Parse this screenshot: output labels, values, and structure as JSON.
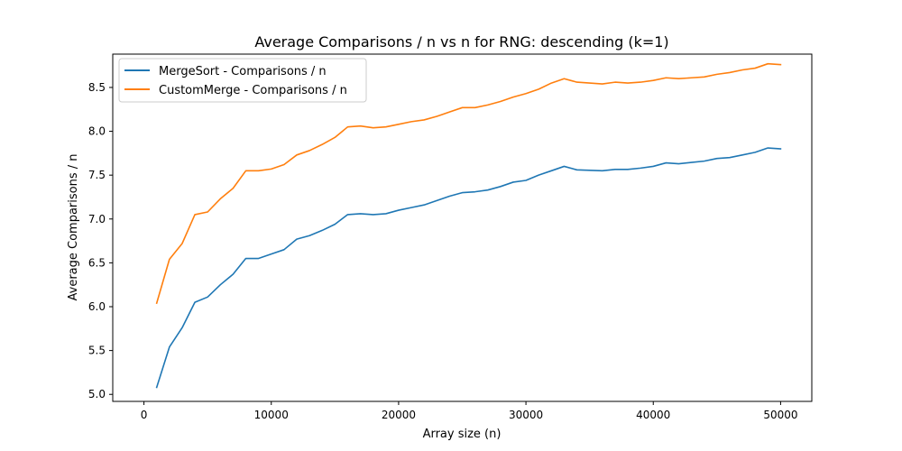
{
  "chart_data": {
    "type": "line",
    "title": "Average Comparisons / n vs n for RNG: descending (k=1)",
    "xlabel": "Array size (n)",
    "ylabel": "Average Comparisons / n",
    "xlim": [
      -2450,
      52450
    ],
    "ylim": [
      4.92,
      8.88
    ],
    "xticks": [
      0,
      10000,
      20000,
      30000,
      40000,
      50000
    ],
    "yticks": [
      5.0,
      5.5,
      6.0,
      6.5,
      7.0,
      7.5,
      8.0,
      8.5
    ],
    "ytick_labels": [
      "5.0",
      "5.5",
      "6.0",
      "6.5",
      "7.0",
      "7.5",
      "8.0",
      "8.5"
    ],
    "grid": false,
    "legend_position": "top-left",
    "x": [
      1000,
      2000,
      3000,
      4000,
      5000,
      6000,
      7000,
      8000,
      9000,
      10000,
      11000,
      12000,
      13000,
      14000,
      15000,
      16000,
      17000,
      18000,
      19000,
      20000,
      21000,
      22000,
      23000,
      24000,
      25000,
      26000,
      27000,
      28000,
      29000,
      30000,
      31000,
      32000,
      33000,
      34000,
      35000,
      36000,
      37000,
      38000,
      39000,
      40000,
      41000,
      42000,
      43000,
      44000,
      45000,
      46000,
      47000,
      48000,
      49000,
      50000
    ],
    "series": [
      {
        "name": "MergeSort - Comparisons / n",
        "color": "#1f77b4",
        "values": [
          5.08,
          5.54,
          5.76,
          6.05,
          6.11,
          6.25,
          6.37,
          6.55,
          6.55,
          6.6,
          6.65,
          6.77,
          6.81,
          6.87,
          6.94,
          7.05,
          7.06,
          7.05,
          7.06,
          7.1,
          7.13,
          7.16,
          7.21,
          7.26,
          7.3,
          7.31,
          7.33,
          7.37,
          7.42,
          7.44,
          7.5,
          7.55,
          7.6,
          7.56,
          7.555,
          7.55,
          7.565,
          7.565,
          7.58,
          7.6,
          7.64,
          7.63,
          7.645,
          7.66,
          7.69,
          7.7,
          7.73,
          7.76,
          7.81,
          7.8
        ]
      },
      {
        "name": "CustomMerge - Comparisons / n",
        "color": "#ff7f0e",
        "values": [
          6.04,
          6.54,
          6.72,
          7.05,
          7.08,
          7.23,
          7.35,
          7.55,
          7.55,
          7.57,
          7.62,
          7.73,
          7.78,
          7.85,
          7.93,
          8.05,
          8.06,
          8.04,
          8.05,
          8.08,
          8.11,
          8.13,
          8.17,
          8.22,
          8.27,
          8.27,
          8.3,
          8.34,
          8.39,
          8.43,
          8.48,
          8.55,
          8.6,
          8.56,
          8.55,
          8.54,
          8.56,
          8.55,
          8.56,
          8.58,
          8.61,
          8.6,
          8.61,
          8.62,
          8.65,
          8.67,
          8.7,
          8.72,
          8.77,
          8.76
        ]
      }
    ]
  }
}
